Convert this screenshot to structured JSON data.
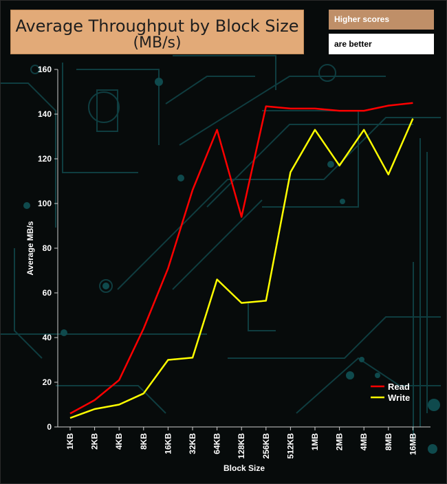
{
  "notes": {
    "line1": "Higher scores",
    "line2": "are better"
  },
  "colors": {
    "read": "#ff0000",
    "write": "#ffff00",
    "axis": "#cfcfcf",
    "title_bg": "#e2aa78",
    "circuit": "#0f3d40"
  },
  "chart_data": {
    "type": "line",
    "title": [
      "Average Throughput by Block Size",
      "(MB/s)"
    ],
    "xlabel": "Block Size",
    "ylabel": "Average MB/s",
    "ylim": [
      0,
      160
    ],
    "yticks": [
      0,
      20,
      40,
      60,
      80,
      100,
      120,
      140,
      160
    ],
    "grid": false,
    "legend_position": "bottom-right",
    "categories": [
      "1KB",
      "2KB",
      "4KB",
      "8KB",
      "16KB",
      "32KB",
      "64KB",
      "128KB",
      "256KB",
      "512KB",
      "1MB",
      "2MB",
      "4MB",
      "8MB",
      "16MB"
    ],
    "series": [
      {
        "name": "Read",
        "color": "#ff0000",
        "values": [
          6,
          12,
          21,
          44,
          71,
          106,
          133,
          94,
          143.5,
          142.5,
          142.5,
          141.5,
          141.5,
          143.8,
          145
        ]
      },
      {
        "name": "Write",
        "color": "#ffff00",
        "values": [
          4,
          8,
          10,
          15,
          30,
          31,
          66,
          55.5,
          56.5,
          114,
          133,
          117,
          133,
          113,
          138
        ]
      }
    ]
  }
}
